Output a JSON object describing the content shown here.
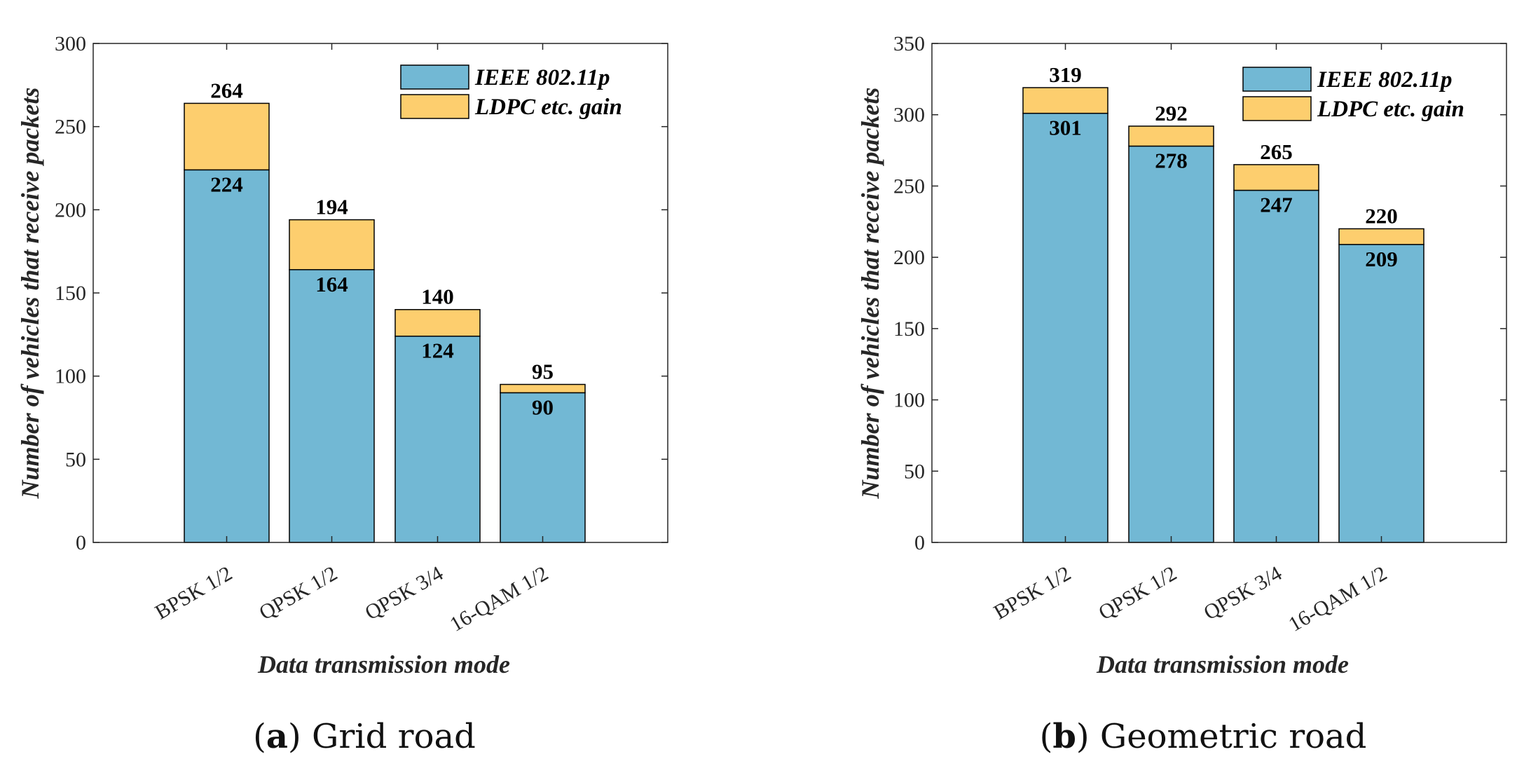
{
  "chart_data": [
    {
      "type": "bar",
      "stacked": true,
      "caption_letter": "a",
      "caption_text": " Grid road",
      "categories": [
        "BPSK 1/2",
        "QPSK 1/2",
        "QPSK 3/4",
        "16-QAM 1/2"
      ],
      "series": [
        {
          "name": "IEEE 802.11p",
          "values": [
            224,
            164,
            124,
            90
          ],
          "color": "#72B8D4"
        },
        {
          "name": "LDPC etc. gain",
          "values": [
            40,
            30,
            16,
            5
          ],
          "color": "#FDCE6E"
        }
      ],
      "totals": [
        264,
        194,
        140,
        95
      ],
      "ylim": [
        0,
        300
      ],
      "yticks": [
        "0",
        "50",
        "100",
        "150",
        "200",
        "250",
        "300"
      ],
      "xlabel": "Data transmission mode",
      "ylabel": "Number of vehicles that receive packets",
      "legend_position": "top-right"
    },
    {
      "type": "bar",
      "stacked": true,
      "caption_letter": "b",
      "caption_text": " Geometric road",
      "categories": [
        "BPSK 1/2",
        "QPSK 1/2",
        "QPSK 3/4",
        "16-QAM 1/2"
      ],
      "series": [
        {
          "name": "IEEE 802.11p",
          "values": [
            301,
            278,
            247,
            209
          ],
          "color": "#72B8D4"
        },
        {
          "name": "LDPC etc. gain",
          "values": [
            18,
            14,
            18,
            11
          ],
          "color": "#FDCE6E"
        }
      ],
      "totals": [
        319,
        292,
        265,
        220
      ],
      "ylim": [
        0,
        350
      ],
      "yticks": [
        "0",
        "50",
        "100",
        "150",
        "200",
        "250",
        "300",
        "350"
      ],
      "xlabel": "Data transmission mode",
      "ylabel": "Number of vehicles that receive packets",
      "legend_position": "top-right"
    }
  ]
}
